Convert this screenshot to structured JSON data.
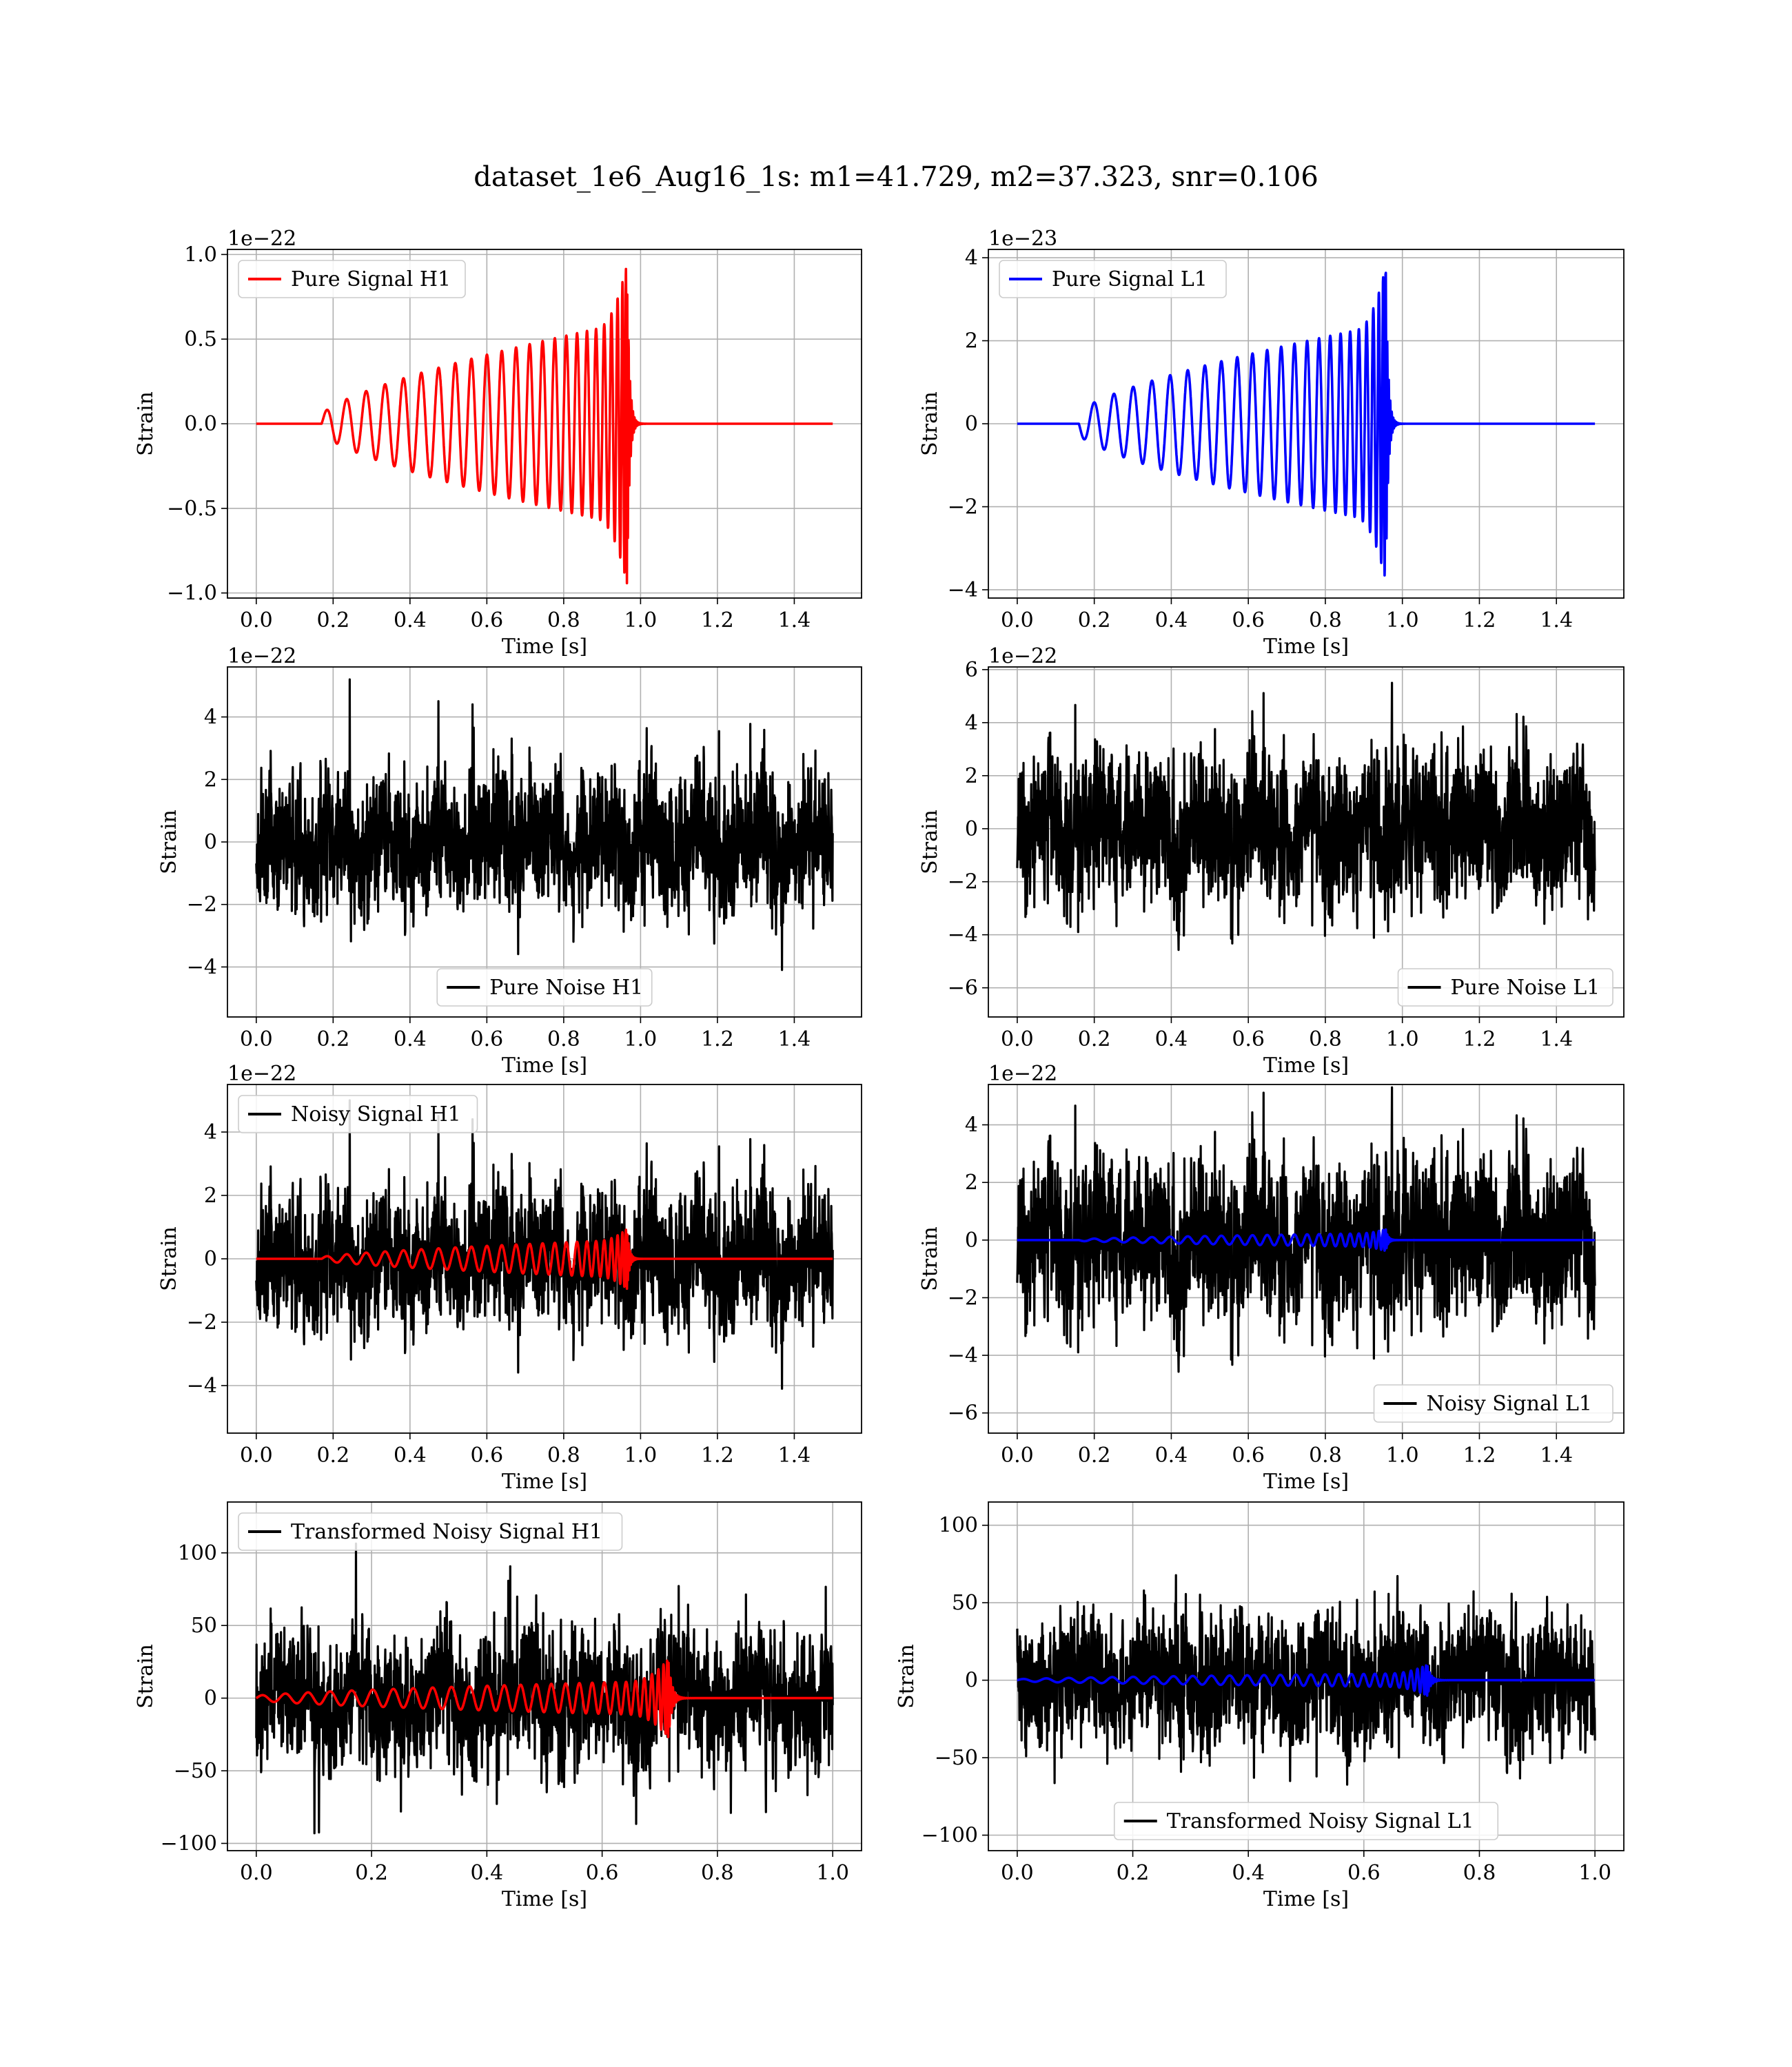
{
  "figure": {
    "title": "dataset_1e6_Aug16_1s: m1=41.729, m2=37.323, snr=0.106",
    "colors": {
      "h1_signal": "#ff0000",
      "l1_signal": "#0000ff",
      "noise": "#000000",
      "grid": "#b0b0b0"
    }
  },
  "chart_data": [
    {
      "type": "line",
      "id": "pure-signal-h1",
      "xlabel": "Time [s]",
      "ylabel": "Strain",
      "offset_text": "1e−22",
      "xlim": [
        -0.075,
        1.575
      ],
      "ylim": [
        -1.03,
        1.03
      ],
      "xticks": [
        "0.0",
        "0.2",
        "0.4",
        "0.6",
        "0.8",
        "1.0",
        "1.2",
        "1.4"
      ],
      "yticks": [
        "−1.0",
        "−0.5",
        "0.0",
        "0.5",
        "1.0"
      ],
      "legend_loc": "upper left",
      "grid": true,
      "series": [
        {
          "name": "Pure Signal H1",
          "color": "#ff0000",
          "kind": "chirp",
          "t_start": 0.17,
          "t_merge": 0.965,
          "t_end": 1.5,
          "peak": 0.95,
          "inspiral_amp": [
            0.05,
            0.6
          ],
          "cycles": 24
        }
      ]
    },
    {
      "type": "line",
      "id": "pure-signal-l1",
      "xlabel": "Time [s]",
      "ylabel": "Strain",
      "offset_text": "1e−23",
      "xlim": [
        -0.075,
        1.575
      ],
      "ylim": [
        -4.2,
        4.2
      ],
      "xticks": [
        "0.0",
        "0.2",
        "0.4",
        "0.6",
        "0.8",
        "1.0",
        "1.2",
        "1.4"
      ],
      "yticks": [
        "−4",
        "−2",
        "0",
        "2",
        "4"
      ],
      "legend_loc": "upper left",
      "grid": true,
      "series": [
        {
          "name": "Pure Signal L1",
          "color": "#0000ff",
          "kind": "chirp",
          "t_start": 0.16,
          "t_merge": 0.957,
          "t_end": 1.5,
          "peak": 3.8,
          "inspiral_amp": [
            0.25,
            2.4
          ],
          "cycles": 24,
          "phase": 3.1416
        }
      ]
    },
    {
      "type": "line",
      "id": "pure-noise-h1",
      "xlabel": "Time [s]",
      "ylabel": "Strain",
      "offset_text": "1e−22",
      "xlim": [
        -0.075,
        1.575
      ],
      "ylim": [
        -5.6,
        5.6
      ],
      "xticks": [
        "0.0",
        "0.2",
        "0.4",
        "0.6",
        "0.8",
        "1.0",
        "1.2",
        "1.4"
      ],
      "yticks": [
        "−4",
        "−2",
        "0",
        "2",
        "4"
      ],
      "legend_loc": "lower center",
      "grid": true,
      "series": [
        {
          "name": "Pure Noise H1",
          "color": "#000000",
          "kind": "noise",
          "t_start": 0.0,
          "t_end": 1.5,
          "std": 1.55,
          "clip": [
            -5.0,
            5.2
          ],
          "seed": 11
        }
      ]
    },
    {
      "type": "line",
      "id": "pure-noise-l1",
      "xlabel": "Time [s]",
      "ylabel": "Strain",
      "offset_text": "1e−22",
      "xlim": [
        -0.075,
        1.575
      ],
      "ylim": [
        -7.1,
        6.1
      ],
      "xticks": [
        "0.0",
        "0.2",
        "0.4",
        "0.6",
        "0.8",
        "1.0",
        "1.2",
        "1.4"
      ],
      "yticks": [
        "−6",
        "−4",
        "−2",
        "0",
        "2",
        "4",
        "6"
      ],
      "legend_loc": "lower right",
      "grid": true,
      "series": [
        {
          "name": "Pure Noise L1",
          "color": "#000000",
          "kind": "noise",
          "t_start": 0.0,
          "t_end": 1.5,
          "std": 2.0,
          "clip": [
            -6.5,
            5.5
          ],
          "seed": 23
        }
      ]
    },
    {
      "type": "line",
      "id": "noisy-signal-h1",
      "xlabel": "Time [s]",
      "ylabel": "Strain",
      "offset_text": "1e−22",
      "xlim": [
        -0.075,
        1.575
      ],
      "ylim": [
        -5.5,
        5.5
      ],
      "xticks": [
        "0.0",
        "0.2",
        "0.4",
        "0.6",
        "0.8",
        "1.0",
        "1.2",
        "1.4"
      ],
      "yticks": [
        "−4",
        "−2",
        "0",
        "2",
        "4"
      ],
      "legend_loc": "upper left",
      "grid": true,
      "series": [
        {
          "name": "Noisy Signal H1",
          "color": "#000000",
          "kind": "noise",
          "t_start": 0.0,
          "t_end": 1.5,
          "std": 1.55,
          "clip": [
            -5.0,
            5.0
          ],
          "seed": 11
        },
        {
          "name": "",
          "color": "#ff0000",
          "kind": "chirp",
          "t_start": 0.17,
          "t_merge": 0.965,
          "t_end": 1.5,
          "peak": 0.95,
          "inspiral_amp": [
            0.05,
            0.6
          ],
          "cycles": 24
        }
      ]
    },
    {
      "type": "line",
      "id": "noisy-signal-l1",
      "xlabel": "Time [s]",
      "ylabel": "Strain",
      "offset_text": "1e−22",
      "xlim": [
        -0.075,
        1.575
      ],
      "ylim": [
        -6.7,
        5.4
      ],
      "xticks": [
        "0.0",
        "0.2",
        "0.4",
        "0.6",
        "0.8",
        "1.0",
        "1.2",
        "1.4"
      ],
      "yticks": [
        "−6",
        "−4",
        "−2",
        "0",
        "2",
        "4"
      ],
      "legend_loc": "lower right",
      "grid": true,
      "series": [
        {
          "name": "Noisy Signal L1",
          "color": "#000000",
          "kind": "noise",
          "t_start": 0.0,
          "t_end": 1.5,
          "std": 2.0,
          "clip": [
            -6.3,
            5.3
          ],
          "seed": 23
        },
        {
          "name": "",
          "color": "#0000ff",
          "kind": "chirp",
          "t_start": 0.16,
          "t_merge": 0.957,
          "t_end": 1.5,
          "peak": 0.38,
          "inspiral_amp": [
            0.025,
            0.24
          ],
          "cycles": 24,
          "phase": 3.1416
        }
      ]
    },
    {
      "type": "line",
      "id": "transformed-noisy-signal-h1",
      "xlabel": "Time [s]",
      "ylabel": "Strain",
      "offset_text": "",
      "xlim": [
        -0.05,
        1.05
      ],
      "ylim": [
        -105,
        135
      ],
      "xticks": [
        "0.0",
        "0.2",
        "0.4",
        "0.6",
        "0.8",
        "1.0"
      ],
      "yticks": [
        "−100",
        "−50",
        "0",
        "50",
        "100"
      ],
      "legend_loc": "upper left",
      "grid": true,
      "series": [
        {
          "name": "Transformed Noisy Signal H1",
          "color": "#000000",
          "kind": "noise",
          "t_start": 0.0,
          "t_end": 1.0,
          "std": 33,
          "clip": [
            -93,
            123
          ],
          "seed": 37
        },
        {
          "name": "",
          "color": "#ff0000",
          "kind": "chirp",
          "t_start": 0.0,
          "t_merge": 0.715,
          "t_end": 1.0,
          "peak": 27,
          "inspiral_amp": [
            1.5,
            12
          ],
          "cycles": 28
        }
      ]
    },
    {
      "type": "line",
      "id": "transformed-noisy-signal-l1",
      "xlabel": "Time [s]",
      "ylabel": "Strain",
      "offset_text": "",
      "xlim": [
        -0.05,
        1.05
      ],
      "ylim": [
        -110,
        115
      ],
      "xticks": [
        "0.0",
        "0.2",
        "0.4",
        "0.6",
        "0.8",
        "1.0"
      ],
      "yticks": [
        "−100",
        "−50",
        "0",
        "50",
        "100"
      ],
      "legend_loc": "lower center",
      "grid": true,
      "series": [
        {
          "name": "Transformed Noisy Signal L1",
          "color": "#000000",
          "kind": "noise",
          "t_start": 0.0,
          "t_end": 1.0,
          "std": 30,
          "clip": [
            -100,
            104
          ],
          "seed": 53
        },
        {
          "name": "",
          "color": "#0000ff",
          "kind": "chirp",
          "t_start": 0.0,
          "t_merge": 0.71,
          "t_end": 1.0,
          "peak": 10,
          "inspiral_amp": [
            0.6,
            4.5
          ],
          "cycles": 28
        }
      ]
    }
  ]
}
